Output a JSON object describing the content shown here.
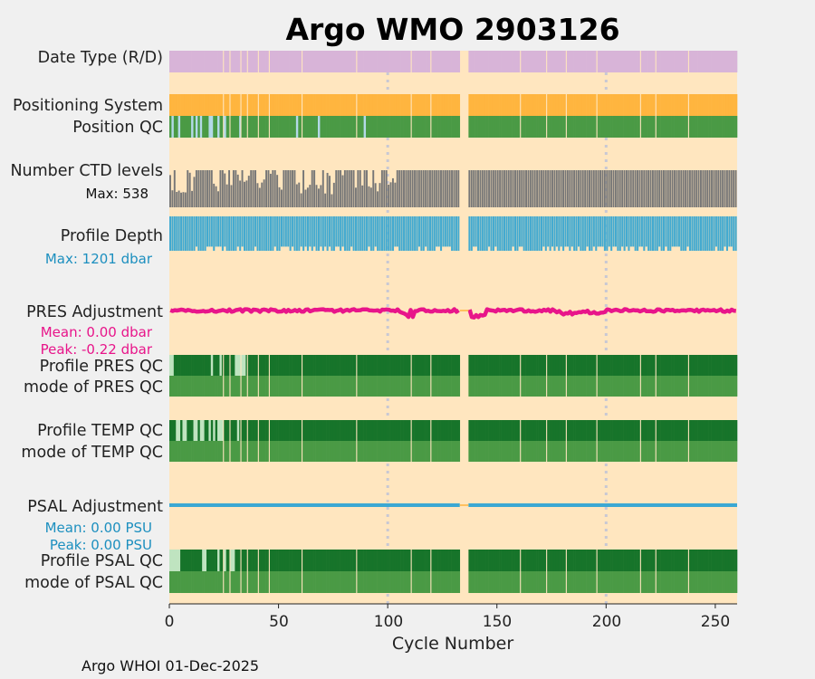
{
  "chart_data": {
    "type": "bar",
    "title": "Argo WMO 2903126",
    "xlabel": "Cycle Number",
    "xlim": [
      0,
      260
    ],
    "x_ticks": [
      "0",
      "50",
      "100",
      "150",
      "200",
      "250"
    ],
    "x_tick_values": [
      0,
      50,
      100,
      150,
      200,
      250
    ],
    "gridlines_x": [
      100,
      200
    ],
    "missing_cycles": [
      133,
      134,
      135,
      136
    ],
    "footer": "Argo WHOI 01-Dec-2025",
    "rows": [
      {
        "id": "date-type",
        "label": "Date Type (R/D)"
      },
      {
        "id": "positioning-system",
        "label": "Positioning System"
      },
      {
        "id": "position-qc",
        "label": "Position QC"
      },
      {
        "id": "number-ctd-levels",
        "label": "Number CTD levels",
        "note": "Max: 538",
        "max": 538
      },
      {
        "id": "profile-depth",
        "label": "Profile Depth",
        "note": "Max: 1201 dbar",
        "max": 1201
      },
      {
        "id": "pres-adjustment",
        "label": "PRES Adjustment",
        "mean": "Mean: 0.00 dbar",
        "peak": "Peak: -0.22 dbar"
      },
      {
        "id": "profile-pres-qc",
        "label": "Profile PRES QC"
      },
      {
        "id": "mode-pres-qc",
        "label": "mode of PRES QC"
      },
      {
        "id": "profile-temp-qc",
        "label": "Profile TEMP QC"
      },
      {
        "id": "mode-temp-qc",
        "label": "mode of TEMP QC"
      },
      {
        "id": "psal-adjustment",
        "label": "PSAL Adjustment",
        "mean": "Mean: 0.00 PSU",
        "peak": "Peak: 0.00 PSU"
      },
      {
        "id": "profile-psal-qc",
        "label": "Profile PSAL QC"
      },
      {
        "id": "mode-psal-qc",
        "label": "mode of PSAL QC"
      }
    ]
  },
  "colors": {
    "background": "#ffe6bf",
    "date_type": "#d8b4d8",
    "positioning": "#ffb53f",
    "qc_good": "#4a9a45",
    "qc_profile": "#17742a",
    "qc_light": "#bfe4c0",
    "position_light": "#b3d9e8",
    "ctd": "#777777",
    "depth": "#43aad0",
    "pres_adj": "#e8158a",
    "psal_adj": "#3ba8d3",
    "title": "#1590c0",
    "note_blue": "#1c8fbf",
    "note_pink": "#e8158a",
    "grid": "#c8c8d4",
    "gap_line": "#ffb53f"
  }
}
